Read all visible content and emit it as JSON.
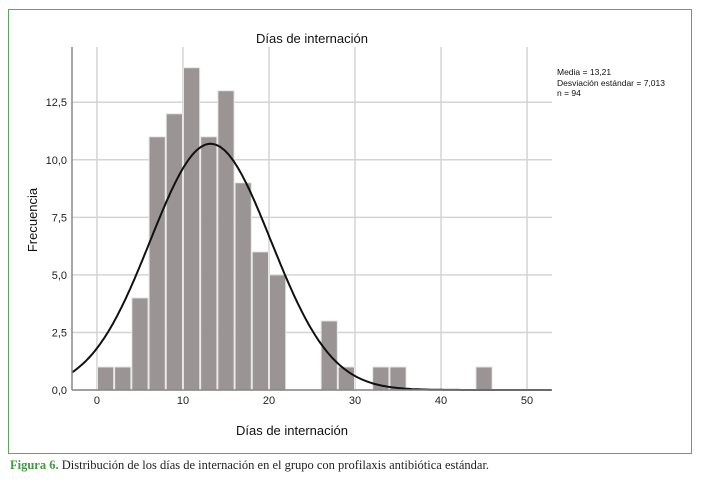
{
  "chart_data": {
    "type": "bar",
    "title": "Días de internación",
    "xlabel": "Días de internación",
    "ylabel": "Frecuencia",
    "bin_width": 2,
    "bins_start": [
      0,
      2,
      4,
      6,
      8,
      10,
      12,
      14,
      16,
      18,
      20,
      22,
      24,
      26,
      28,
      30,
      32,
      34,
      36,
      38,
      40,
      42,
      44
    ],
    "values": [
      1,
      1,
      4,
      11,
      12,
      14,
      11,
      13,
      9,
      6,
      5,
      0,
      0,
      3,
      1,
      0,
      1,
      1,
      0,
      0,
      0,
      0,
      1
    ],
    "xlim": [
      -2.9,
      52.9
    ],
    "ylim": [
      0,
      14.9
    ],
    "xticks": [
      "0",
      "10",
      "20",
      "30",
      "40",
      "50"
    ],
    "yticks": [
      "0,0",
      "2,5",
      "5,0",
      "7,5",
      "10,0",
      "12,5"
    ],
    "grid": true,
    "normal_curve": {
      "mean": 13.21,
      "sd": 7.013,
      "n": 94
    },
    "bar_color": "#9a9494",
    "legend": [
      "Media = 13,21",
      "Desviación estándar = 7,013",
      "n = 94"
    ]
  },
  "caption": {
    "label": "Figura 6.",
    "text": " Distribución de los días de internación en el grupo con profilaxis antibiótica estándar."
  }
}
